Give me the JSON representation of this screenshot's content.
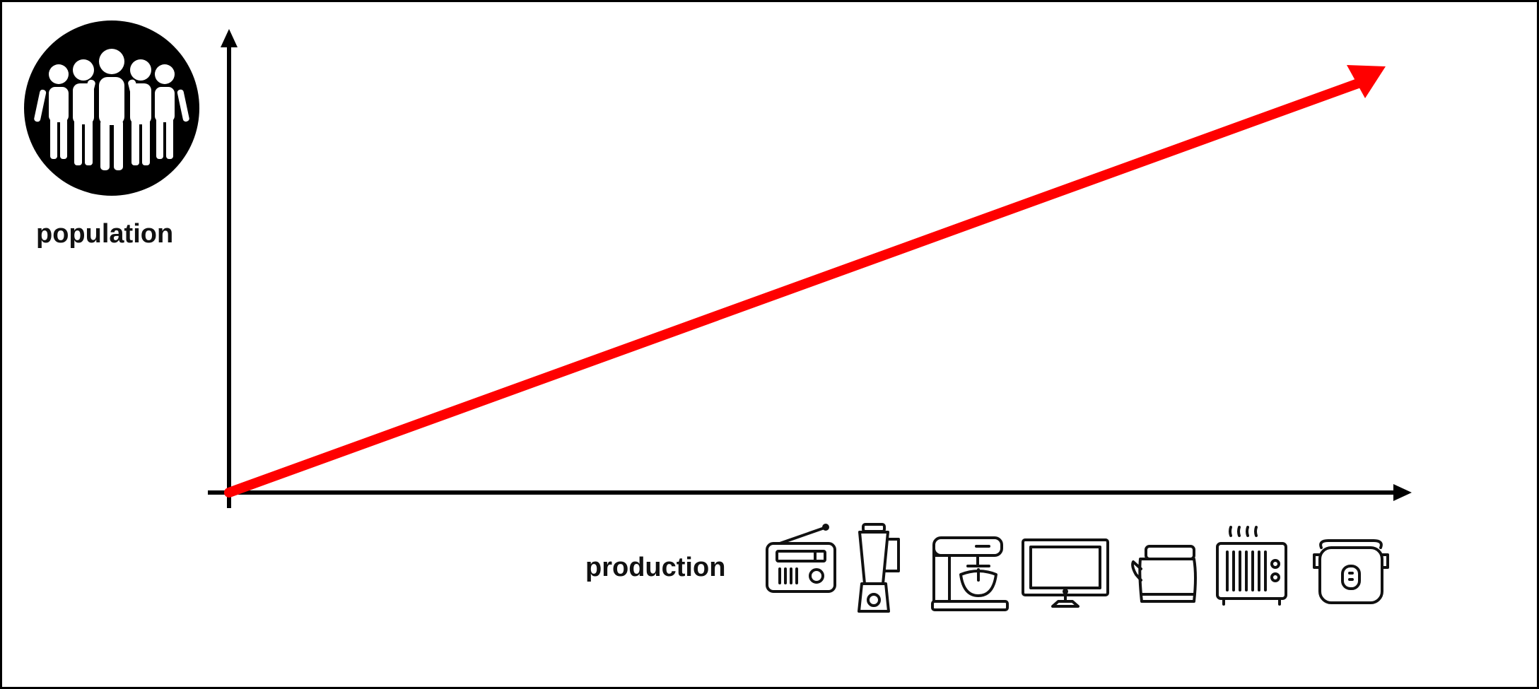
{
  "y_axis": {
    "label": "population",
    "icon": "people-group-icon"
  },
  "x_axis": {
    "label": "production",
    "icons": [
      "radio-icon",
      "blender-icon",
      "stand-mixer-icon",
      "television-icon",
      "kettle-icon",
      "toaster-icon",
      "rice-cooker-icon"
    ]
  },
  "trend": {
    "direction": "increasing",
    "color": "#ff0000"
  },
  "colors": {
    "axis": "#000000",
    "trend_arrow": "#ff0000",
    "background": "#ffffff"
  }
}
